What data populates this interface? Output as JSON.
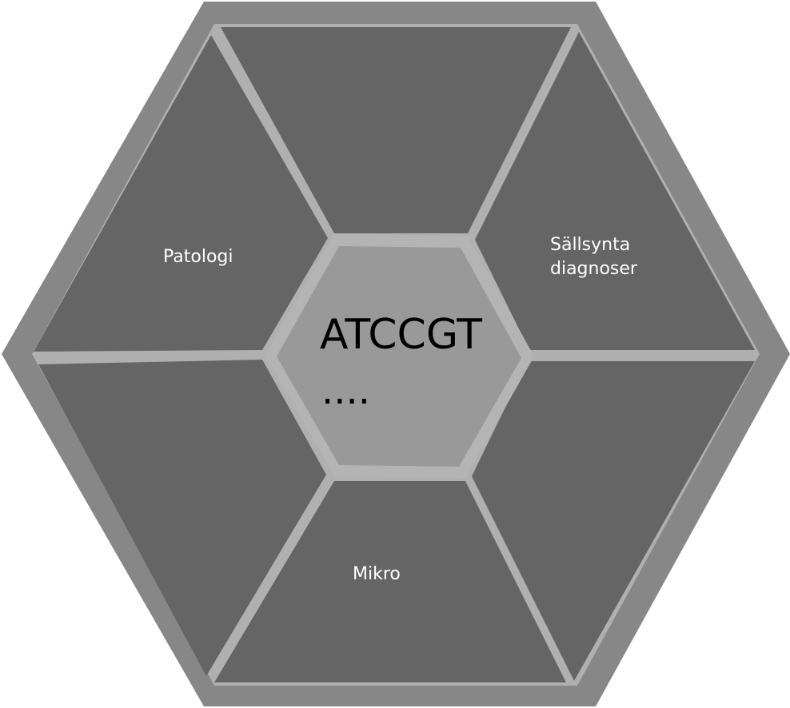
{
  "diagram": {
    "segments": [
      {
        "id": "top",
        "label": ""
      },
      {
        "id": "upper-right",
        "label": "Sällsynta diagnoser",
        "lines": [
          "Sällsynta",
          "diagnoser"
        ]
      },
      {
        "id": "lower-right",
        "label": ""
      },
      {
        "id": "bottom",
        "label": "Mikro"
      },
      {
        "id": "lower-left",
        "label": ""
      },
      {
        "id": "upper-left",
        "label": "Patologi"
      }
    ],
    "center": {
      "label": "ATCCGT",
      "sublabel": "...."
    },
    "colors": {
      "outer_frame": "#878787",
      "segment_fill": "#656565",
      "divider": "#b0b0b0",
      "center_fill": "#999999",
      "center_border": "#b4b4b4",
      "segment_text": "#ffffff",
      "center_text": "#000000"
    }
  }
}
